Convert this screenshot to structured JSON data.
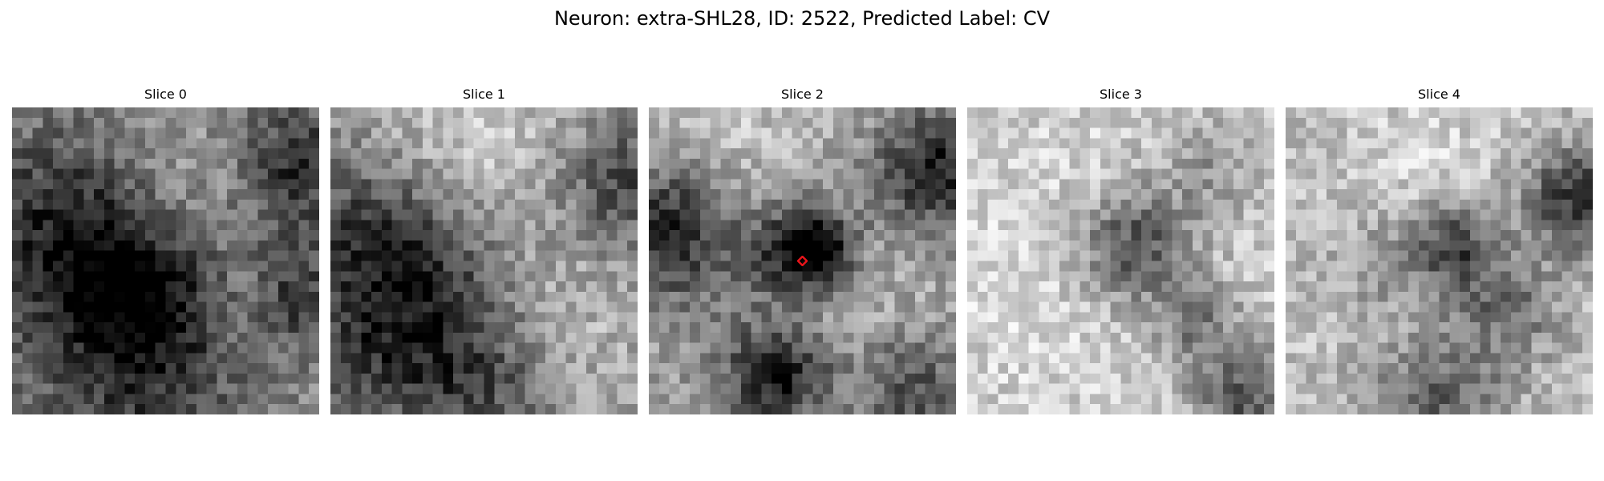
{
  "figure": {
    "title": "Neuron: extra-SHL28, ID: 2522, Predicted Label: CV",
    "marker_color": "#e8141a",
    "colormap": "gray",
    "slices": [
      {
        "title": "Slice 0",
        "seed": 11,
        "base": 0.55,
        "blobs": [
          [
            0.15,
            0.35,
            0.22,
            -0.3
          ],
          [
            0.3,
            0.58,
            0.2,
            -0.35
          ],
          [
            0.55,
            0.62,
            0.18,
            -0.3
          ],
          [
            0.92,
            0.2,
            0.15,
            -0.4
          ],
          [
            0.93,
            0.62,
            0.12,
            -0.35
          ],
          [
            0.4,
            0.95,
            0.25,
            -0.25
          ],
          [
            0.6,
            0.3,
            0.2,
            0.15
          ],
          [
            0.75,
            0.65,
            0.12,
            0.2
          ]
        ]
      },
      {
        "title": "Slice 1",
        "seed": 23,
        "base": 0.62,
        "blobs": [
          [
            0.1,
            0.4,
            0.2,
            -0.35
          ],
          [
            0.35,
            0.55,
            0.2,
            -0.3
          ],
          [
            0.15,
            0.8,
            0.18,
            -0.3
          ],
          [
            0.5,
            0.9,
            0.18,
            -0.35
          ],
          [
            0.95,
            0.25,
            0.15,
            -0.35
          ],
          [
            0.45,
            0.15,
            0.25,
            0.2
          ],
          [
            0.7,
            0.75,
            0.2,
            0.15
          ]
        ]
      },
      {
        "title": "Slice 2",
        "seed": 37,
        "base": 0.66,
        "blobs": [
          [
            0.5,
            0.47,
            0.1,
            -0.6
          ],
          [
            0.58,
            0.45,
            0.07,
            -0.3
          ],
          [
            0.05,
            0.38,
            0.15,
            -0.5
          ],
          [
            0.95,
            0.2,
            0.15,
            -0.55
          ],
          [
            0.42,
            0.88,
            0.12,
            -0.6
          ],
          [
            0.85,
            0.92,
            0.15,
            -0.4
          ],
          [
            0.25,
            0.45,
            0.25,
            -0.2
          ],
          [
            0.2,
            0.15,
            0.25,
            0.2
          ],
          [
            0.65,
            0.75,
            0.25,
            0.1
          ]
        ]
      },
      {
        "title": "Slice 3",
        "seed": 53,
        "base": 0.8,
        "blobs": [
          [
            0.55,
            0.45,
            0.13,
            -0.5
          ],
          [
            0.75,
            0.7,
            0.1,
            -0.3
          ],
          [
            0.9,
            0.95,
            0.12,
            -0.45
          ],
          [
            0.8,
            0.2,
            0.12,
            -0.2
          ],
          [
            0.2,
            0.5,
            0.3,
            0.05
          ]
        ]
      },
      {
        "title": "Slice 4",
        "seed": 71,
        "base": 0.74,
        "blobs": [
          [
            0.55,
            0.45,
            0.1,
            -0.5
          ],
          [
            0.95,
            0.3,
            0.12,
            -0.55
          ],
          [
            0.72,
            0.65,
            0.12,
            -0.3
          ],
          [
            0.5,
            0.95,
            0.15,
            -0.35
          ],
          [
            0.3,
            0.5,
            0.12,
            -0.15
          ],
          [
            0.45,
            0.2,
            0.2,
            0.1
          ]
        ]
      }
    ],
    "marked_slice": 2,
    "marker_position": [
      0.5,
      0.5
    ]
  }
}
